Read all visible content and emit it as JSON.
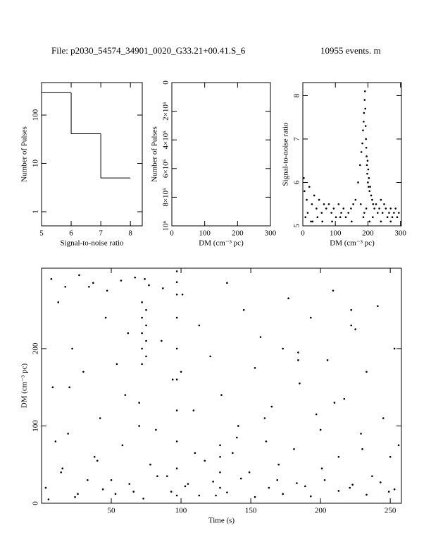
{
  "header": {
    "file": "File: p2030_54574_34901_0020_G33.21+00.41.S_6",
    "events": "10955 events. m"
  },
  "chart_data": [
    {
      "type": "histogram",
      "xlabel": "Signal-to-noise ratio",
      "ylabel": "Number of Pulses",
      "bins": [
        5,
        6,
        7,
        8
      ],
      "values": [
        290,
        41,
        5
      ],
      "color": "#000000",
      "xlim": [
        5,
        8.4
      ],
      "ylim": [
        0.51,
        470
      ],
      "ylog": true,
      "xticks": [
        5,
        6,
        7,
        8
      ],
      "yticks": [
        1,
        10,
        100
      ]
    },
    {
      "type": "histogram",
      "xlabel": "DM (cm⁻³ pc)",
      "ylabel": "Number of Pulses",
      "bins": [],
      "values": [],
      "color": "#000000",
      "xlim": [
        0,
        300
      ],
      "ylim": [
        1000000,
        0
      ],
      "xticks": [
        0,
        100,
        200,
        300
      ],
      "yticks": [
        0,
        {
          "value": 200000,
          "label": "2×10⁵"
        },
        {
          "value": 400000,
          "label": "4×10⁵"
        },
        {
          "value": 600000,
          "label": "6×10⁵"
        },
        {
          "value": 800000,
          "label": "8×10⁵"
        },
        {
          "value": 1000000,
          "label": "10⁶"
        }
      ]
    },
    {
      "type": "scatter",
      "xlabel": "DM (cm⁻³ pc)",
      "ylabel": "Signal-to-noise ratio",
      "color": "#000000",
      "x": [
        5,
        12,
        20,
        28,
        35,
        42,
        50,
        58,
        65,
        72,
        80,
        88,
        95,
        102,
        110,
        118,
        125,
        132,
        140,
        148,
        155,
        162,
        170,
        176,
        180,
        183,
        185,
        187,
        188,
        190,
        191,
        192,
        193,
        194,
        195,
        196,
        197,
        198,
        199,
        200,
        201,
        202,
        203,
        205,
        207,
        210,
        213,
        216,
        220,
        225,
        230,
        235,
        240,
        245,
        250,
        255,
        260,
        265,
        270,
        275,
        280,
        285,
        290,
        295,
        8,
        25,
        45,
        60,
        90,
        115,
        150,
        178,
        186,
        189,
        195,
        205,
        215,
        240,
        270,
        3,
        15,
        30
      ],
      "values": [
        5.8,
        5.6,
        5.9,
        5.5,
        5.7,
        5.4,
        5.6,
        5.3,
        5.5,
        5.4,
        5.5,
        5.3,
        5.4,
        5.2,
        5.5,
        5.3,
        5.4,
        5.2,
        5.3,
        5.4,
        5.5,
        5.6,
        6.0,
        6.4,
        6.7,
        6.9,
        7.2,
        7.4,
        7.6,
        7.9,
        8.1,
        7.7,
        7.3,
        7.0,
        6.8,
        6.6,
        6.4,
        6.2,
        6.5,
        6.0,
        6.3,
        5.9,
        6.1,
        5.8,
        5.9,
        5.7,
        5.6,
        5.5,
        5.4,
        5.5,
        5.3,
        5.4,
        5.6,
        5.3,
        5.5,
        5.4,
        5.2,
        5.3,
        5.4,
        5.2,
        5.3,
        5.4,
        5.2,
        5.3,
        5.2,
        5.1,
        5.2,
        5.1,
        5.1,
        5.2,
        5.1,
        5.5,
        5.2,
        5.3,
        5.4,
        5.1,
        5.2,
        5.1,
        5.1,
        6.1,
        5.3,
        5.1
      ],
      "xlim": [
        0,
        303
      ],
      "ylim": [
        5,
        8.3
      ],
      "xticks": [
        0,
        100,
        200,
        300
      ],
      "yticks": [
        5,
        6,
        7,
        8
      ]
    },
    {
      "type": "scatter",
      "xlabel": "Time (s)",
      "ylabel": "DM (cm⁻³ pc)",
      "color": "#000000",
      "x": [
        3,
        8,
        12,
        15,
        19,
        22,
        26,
        30,
        34,
        38,
        42,
        46,
        50,
        54,
        58,
        62,
        66,
        70,
        74,
        78,
        82,
        86,
        90,
        94,
        101,
        105,
        109,
        113,
        117,
        121,
        125,
        129,
        133,
        137,
        141,
        145,
        149,
        153,
        157,
        161,
        165,
        169,
        173,
        177,
        181,
        185,
        189,
        193,
        197,
        201,
        205,
        209,
        213,
        217,
        221,
        225,
        229,
        233,
        237,
        241,
        245,
        249,
        253,
        256,
        5,
        14,
        24,
        33,
        44,
        53,
        63,
        73,
        83,
        93,
        103,
        113,
        123,
        133,
        143,
        153,
        163,
        173,
        183,
        193,
        203,
        213,
        223,
        233,
        243,
        253,
        7,
        17,
        27,
        37,
        47,
        57,
        67,
        77,
        87,
        97,
        97,
        97,
        97,
        97,
        97,
        97,
        97,
        97,
        97,
        72,
        72,
        72,
        72,
        72,
        75,
        75,
        75,
        75,
        128,
        128,
        128,
        128,
        222,
        222,
        184,
        184,
        10,
        40,
        70,
        110,
        140,
        170,
        200,
        230,
        250,
        20,
        60,
        100,
        160,
        210
      ],
      "values": [
        20,
        150,
        260,
        45,
        90,
        200,
        12,
        170,
        280,
        60,
        110,
        240,
        30,
        180,
        75,
        220,
        15,
        130,
        290,
        50,
        95,
        210,
        35,
        160,
        270,
        25,
        120,
        230,
        55,
        190,
        10,
        140,
        285,
        65,
        100,
        250,
        40,
        175,
        215,
        80,
        125,
        30,
        200,
        265,
        70,
        155,
        22,
        240,
        115,
        45,
        185,
        275,
        60,
        135,
        20,
        225,
        90,
        170,
        35,
        255,
        110,
        15,
        200,
        75,
        5,
        40,
        8,
        30,
        18,
        12,
        25,
        6,
        35,
        15,
        22,
        10,
        28,
        14,
        32,
        8,
        20,
        12,
        26,
        9,
        30,
        16,
        24,
        11,
        27,
        18,
        290,
        280,
        295,
        285,
        275,
        288,
        292,
        282,
        278,
        286,
        10,
        45,
        80,
        120,
        160,
        200,
        240,
        270,
        300,
        180,
        200,
        220,
        240,
        260,
        190,
        210,
        230,
        250,
        20,
        40,
        60,
        75,
        230,
        250,
        185,
        195,
        80,
        55,
        100,
        65,
        85,
        50,
        95,
        70,
        60,
        150,
        140,
        170,
        110,
        130
      ],
      "xlim": [
        0,
        258
      ],
      "ylim": [
        0,
        304
      ],
      "xticks": [
        50,
        100,
        150,
        200,
        250
      ],
      "yticks": [
        0,
        100,
        200
      ]
    }
  ]
}
